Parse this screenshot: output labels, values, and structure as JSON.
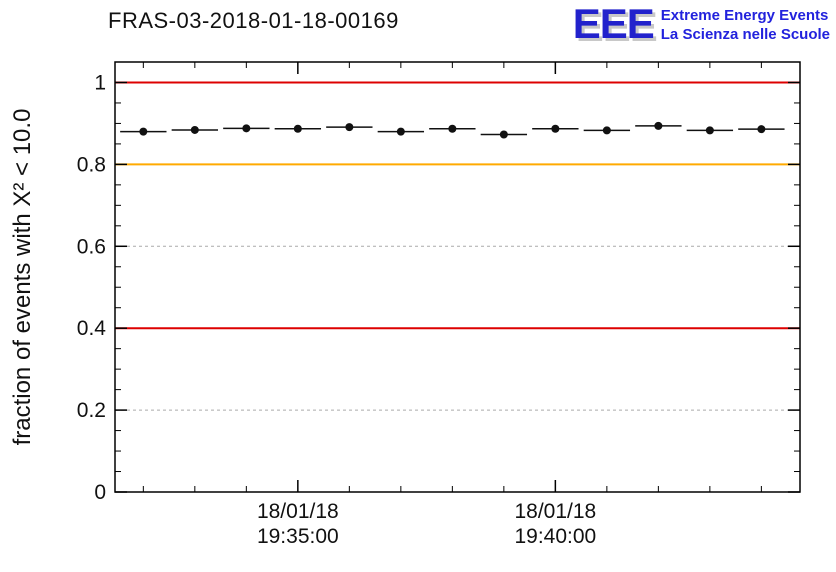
{
  "logo": {
    "acronym": "EEE",
    "line1": "Extreme Energy Events",
    "line2": "La Scienza nelle Scuole",
    "color": "#2222cc"
  },
  "chart_data": {
    "type": "scatter",
    "title": "FRAS-03-2018-01-18-00169",
    "ylabel": "fraction of events with X² < 10.0",
    "xlabel": "",
    "ylim": [
      0,
      1.05
    ],
    "yticks": [
      0,
      0.2,
      0.4,
      0.6,
      0.8,
      1
    ],
    "ytick_labels": [
      "0",
      "0.2",
      "0.4",
      "0.6",
      "0.8",
      "1"
    ],
    "y_minor_step": 0.05,
    "xlim_minutes": [
      -0.55,
      12.75
    ],
    "x_minutes": [
      0,
      1,
      2,
      3,
      4,
      5,
      6,
      7,
      8,
      9,
      10,
      11,
      12
    ],
    "x_times": [
      "19:32:00",
      "19:33:00",
      "19:34:00",
      "19:35:00",
      "19:36:00",
      "19:37:00",
      "19:38:00",
      "19:39:00",
      "19:40:00",
      "19:41:00",
      "19:42:00",
      "19:43:00",
      "19:44:00"
    ],
    "values": [
      0.88,
      0.884,
      0.888,
      0.887,
      0.891,
      0.88,
      0.887,
      0.873,
      0.887,
      0.883,
      0.894,
      0.883,
      0.886
    ],
    "xerr_minutes": 0.45,
    "x_major_ticks": [
      {
        "minute": 3,
        "label": [
          "18/01/18",
          "19:35:00"
        ]
      },
      {
        "minute": 8,
        "label": [
          "18/01/18",
          "19:40:00"
        ]
      }
    ],
    "reference_lines": [
      {
        "y": 1.0,
        "color": "#dd0000"
      },
      {
        "y": 0.8,
        "color": "#ffaa00"
      },
      {
        "y": 0.4,
        "color": "#dd0000"
      }
    ],
    "grid": {
      "horizontal": "dashed",
      "color": "#aaaaaa"
    },
    "marker": {
      "shape": "circle",
      "color": "#111111",
      "size": 4
    },
    "legend": null
  }
}
